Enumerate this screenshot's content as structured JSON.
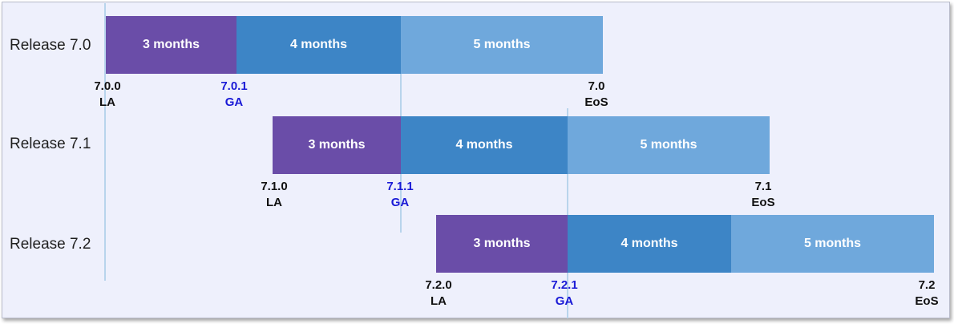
{
  "releases": [
    {
      "label": "Release 7.0",
      "phases": [
        "3 months",
        "4 months",
        "5 months"
      ],
      "milestones": [
        {
          "version": "7.0.0",
          "type": "LA"
        },
        {
          "version": "7.0.1",
          "type": "GA"
        },
        {
          "version": "7.0",
          "type": "EoS"
        }
      ]
    },
    {
      "label": "Release 7.1",
      "phases": [
        "3 months",
        "4 months",
        "5 months"
      ],
      "milestones": [
        {
          "version": "7.1.0",
          "type": "LA"
        },
        {
          "version": "7.1.1",
          "type": "GA"
        },
        {
          "version": "7.1",
          "type": "EoS"
        }
      ]
    },
    {
      "label": "Release 7.2",
      "phases": [
        "3 months",
        "4 months",
        "5 months"
      ],
      "milestones": [
        {
          "version": "7.2.0",
          "type": "LA"
        },
        {
          "version": "7.2.1",
          "type": "GA"
        },
        {
          "version": "7.2",
          "type": "EoS"
        }
      ]
    }
  ],
  "colors": {
    "phase_1": "#6a4da8",
    "phase_2": "#3d85c6",
    "phase_3": "#6fa8dc",
    "ga_text": "#1a1ad6",
    "background": "#eef0fc"
  }
}
